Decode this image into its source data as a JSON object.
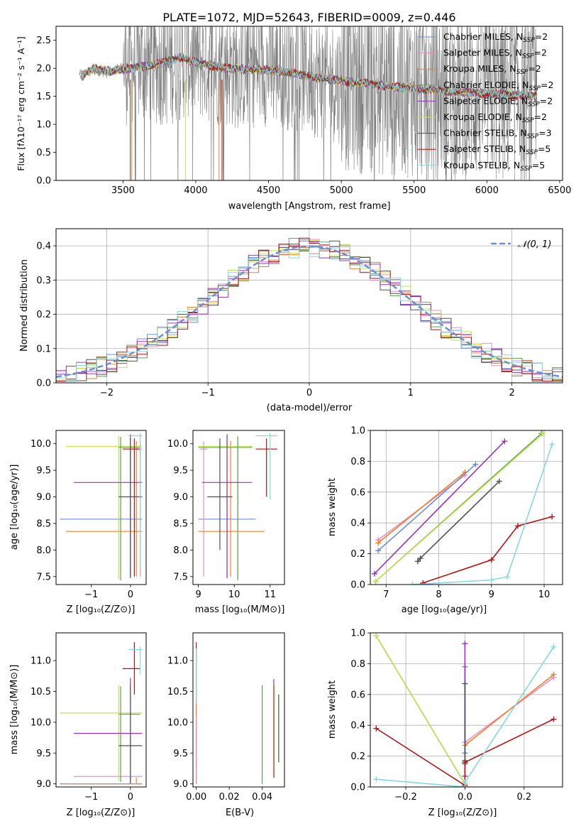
{
  "figure": {
    "title": "PLATE=1072, MJD=52643, FIBERID=0009, z=0.446"
  },
  "legend_entries": [
    {
      "pre": "Chabrier MILES, N",
      "sub": "SSP",
      "post": "=2",
      "color": "#6a8fd8"
    },
    {
      "pre": "Salpeter MILES, N",
      "sub": "SSP",
      "post": "=2",
      "color": "#e98fc9"
    },
    {
      "pre": "Kroupa MILES, N",
      "sub": "SSP",
      "post": "=2",
      "color": "#f0802a"
    },
    {
      "pre": "Chabrier ELODIE, N",
      "sub": "SSP",
      "post": "=2",
      "color": "#5aa05a"
    },
    {
      "pre": "Salpeter ELODIE, N",
      "sub": "SSP",
      "post": "=2",
      "color": "#9b30c0"
    },
    {
      "pre": "Kroupa ELODIE, N",
      "sub": "SSP",
      "post": "=2",
      "color": "#c6e050"
    },
    {
      "pre": "Chabrier STELIB, N",
      "sub": "SSP",
      "post": "=3",
      "color": "#505050"
    },
    {
      "pre": "Salpeter STELIB, N",
      "sub": "SSP",
      "post": "=5",
      "color": "#b01515"
    },
    {
      "pre": "Kroupa STELIB, N",
      "sub": "SSP",
      "post": "=5",
      "color": "#85d8e0"
    }
  ],
  "chart_data": [
    {
      "id": "spectrum",
      "type": "line",
      "title": "PLATE=1072, MJD=52643, FIBERID=0009, z=0.446",
      "xlabel": "wavelength [Angstrom, rest frame]",
      "ylabel": "Flux [fλ10⁻¹⁷ erg cm⁻² s⁻¹ A⁻¹]",
      "xlim": [
        3040,
        6520
      ],
      "ylim": [
        0,
        2.75
      ],
      "xticks": [
        3500,
        4000,
        4500,
        5000,
        5500,
        6000,
        6500
      ],
      "yticks": [
        0.0,
        0.5,
        1.0,
        1.5,
        2.0,
        2.5
      ],
      "data_gray": [
        [
          3200,
          1.9
        ],
        [
          3300,
          1.95
        ],
        [
          3400,
          1.9
        ],
        [
          3500,
          2.05
        ],
        [
          3600,
          2.1
        ],
        [
          3800,
          2.05
        ],
        [
          3950,
          2.2
        ],
        [
          4100,
          2.1
        ],
        [
          4300,
          1.98
        ],
        [
          4500,
          2.05
        ],
        [
          4700,
          1.95
        ],
        [
          4900,
          1.78
        ],
        [
          5100,
          1.72
        ],
        [
          5300,
          1.65
        ],
        [
          5500,
          1.63
        ],
        [
          5700,
          1.6
        ],
        [
          5900,
          1.55
        ],
        [
          6100,
          1.52
        ],
        [
          6300,
          1.5
        ]
      ],
      "models_mean": [
        [
          3210,
          1.85
        ],
        [
          3300,
          2.0
        ],
        [
          3400,
          1.95
        ],
        [
          3550,
          2.0
        ],
        [
          3700,
          2.05
        ],
        [
          3900,
          2.2
        ],
        [
          4000,
          2.1
        ],
        [
          4200,
          2.0
        ],
        [
          4400,
          1.98
        ],
        [
          4600,
          1.95
        ],
        [
          4800,
          1.85
        ],
        [
          5000,
          1.78
        ],
        [
          5200,
          1.72
        ],
        [
          5400,
          1.66
        ],
        [
          5600,
          1.62
        ],
        [
          5800,
          1.58
        ],
        [
          6000,
          1.55
        ],
        [
          6200,
          1.52
        ],
        [
          6340,
          1.5
        ]
      ],
      "grid": false,
      "legend": "right"
    },
    {
      "id": "residuals",
      "type": "line",
      "xlabel": "(data-model)/error",
      "ylabel": "Normed distribution",
      "xlim": [
        -2.5,
        2.5
      ],
      "ylim": [
        0,
        0.45
      ],
      "xticks": [
        -2,
        -1,
        0,
        1,
        2
      ],
      "yticks": [
        0.0,
        0.1,
        0.2,
        0.3,
        0.4
      ],
      "series": [
        {
          "name": "𝒩(0, 1)",
          "curve": "gaussian",
          "mean": 0,
          "sigma": 1
        }
      ],
      "hist_bin_width": 0.1,
      "grid": true,
      "legend": "top-right"
    },
    {
      "id": "age_vs_Z",
      "type": "scatter",
      "xlabel": "Z [log₁₀(Z/Z⊙)]",
      "ylabel": "age [log₁₀(age/yr)]",
      "xlim": [
        -1.9,
        0.4
      ],
      "ylim": [
        7.35,
        10.25
      ],
      "xticks": [
        -1,
        0
      ],
      "yticks": [
        7.5,
        8.0,
        8.5,
        9.0,
        9.5,
        10.0
      ],
      "errorbars": [
        {
          "x": 0.0,
          "y": 8.58,
          "xerr": [
            1.8,
            0.3
          ],
          "yerr": [
            1.1,
            1.6
          ],
          "c": "#6a8fd8"
        },
        {
          "x": 0.15,
          "y": 8.35,
          "xerr": [
            1.8,
            0.15
          ],
          "yerr": [
            0.85,
            1.7
          ],
          "c": "#f0802a"
        },
        {
          "x": 0.25,
          "y": 9.9,
          "xerr": [
            0.1,
            0.05
          ],
          "yerr": [
            2.4,
            0.15
          ],
          "c": "#e98fc9"
        },
        {
          "x": -0.3,
          "y": 9.95,
          "xerr": [
            1.35,
            0.6
          ],
          "yerr": [
            2.5,
            0.2
          ],
          "c": "#c6e050"
        },
        {
          "x": -0.25,
          "y": 9.93,
          "xerr": [
            0.05,
            0.5
          ],
          "yerr": [
            2.5,
            0.2
          ],
          "c": "#5aa05a"
        },
        {
          "x": 0.0,
          "y": 9.27,
          "xerr": [
            1.45,
            0.3
          ],
          "yerr": [
            1.8,
            0.9
          ],
          "c": "#9b30c0"
        },
        {
          "x": 0.0,
          "y": 9.0,
          "xerr": [
            0.3,
            0.3
          ],
          "yerr": [
            1.5,
            1.1
          ],
          "c": "#505050"
        },
        {
          "x": 0.1,
          "y": 9.9,
          "xerr": [
            0.3,
            0.15
          ],
          "yerr": [
            2.4,
            0.2
          ],
          "c": "#b01515"
        },
        {
          "x": 0.25,
          "y": 10.15,
          "xerr": [
            0.3,
            0.05
          ],
          "yerr": [
            2.5,
            0.05
          ],
          "c": "#85d8e0"
        }
      ],
      "grid": false
    },
    {
      "id": "age_vs_mass",
      "type": "scatter",
      "xlabel": "mass [log₁₀(M/M⊙)]",
      "ylabel": "",
      "xlim": [
        8.85,
        11.4
      ],
      "ylim": [
        7.35,
        10.25
      ],
      "xticks": [
        9,
        10,
        11
      ],
      "yticks": [
        7.5,
        8.0,
        8.5,
        9.0,
        9.5,
        10.0
      ],
      "errorbars": [
        {
          "x": 9.8,
          "y": 8.58,
          "xerr": [
            0.8,
            0.8
          ],
          "yerr": [
            1.1,
            1.6
          ],
          "c": "#6a8fd8"
        },
        {
          "x": 9.9,
          "y": 8.35,
          "xerr": [
            0.9,
            0.95
          ],
          "yerr": [
            0.85,
            1.7
          ],
          "c": "#f0802a"
        },
        {
          "x": 9.15,
          "y": 9.9,
          "xerr": [
            0.1,
            0.1
          ],
          "yerr": [
            2.4,
            0.15
          ],
          "c": "#e98fc9"
        },
        {
          "x": 10.1,
          "y": 9.95,
          "xerr": [
            1.1,
            0.4
          ],
          "yerr": [
            2.5,
            0.2
          ],
          "c": "#c6e050"
        },
        {
          "x": 10.1,
          "y": 9.93,
          "xerr": [
            1.1,
            0.4
          ],
          "yerr": [
            2.5,
            0.2
          ],
          "c": "#5aa05a"
        },
        {
          "x": 9.8,
          "y": 9.27,
          "xerr": [
            0.7,
            0.7
          ],
          "yerr": [
            1.8,
            0.9
          ],
          "c": "#9b30c0"
        },
        {
          "x": 9.6,
          "y": 9.0,
          "xerr": [
            0.35,
            0.35
          ],
          "yerr": [
            1.0,
            1.1
          ],
          "c": "#505050"
        },
        {
          "x": 10.9,
          "y": 9.9,
          "xerr": [
            0.3,
            0.3
          ],
          "yerr": [
            0.9,
            0.2
          ],
          "c": "#b01515"
        },
        {
          "x": 11.0,
          "y": 10.15,
          "xerr": [
            0.4,
            0.2
          ],
          "yerr": [
            1.2,
            0.05
          ],
          "c": "#85d8e0"
        }
      ],
      "grid": false
    },
    {
      "id": "weight_vs_age",
      "type": "line",
      "xlabel": "age [log₁₀(age/yr)]",
      "ylabel": "mass weight",
      "xlim": [
        6.7,
        10.35
      ],
      "ylim": [
        0,
        1
      ],
      "xticks": [
        7,
        8,
        9,
        10
      ],
      "yticks": [
        0.0,
        0.2,
        0.4,
        0.6,
        0.8,
        1.0
      ],
      "series": [
        {
          "c": "#e98fc9",
          "pts": [
            [
              6.85,
              0.29
            ],
            [
              8.5,
              0.71
            ]
          ]
        },
        {
          "c": "#f0802a",
          "pts": [
            [
              6.85,
              0.27
            ],
            [
              8.5,
              0.73
            ]
          ]
        },
        {
          "c": "#6a8fd8",
          "pts": [
            [
              6.85,
              0.22
            ],
            [
              8.7,
              0.78
            ]
          ]
        },
        {
          "c": "#9b30c0",
          "pts": [
            [
              6.78,
              0.07
            ],
            [
              9.25,
              0.93
            ]
          ]
        },
        {
          "c": "#5aa05a",
          "pts": [
            [
              6.8,
              0.02
            ],
            [
              9.95,
              0.98
            ]
          ]
        },
        {
          "c": "#c6e050",
          "pts": [
            [
              6.8,
              0.02
            ],
            [
              9.98,
              0.98
            ]
          ]
        },
        {
          "c": "#505050",
          "pts": [
            [
              7.6,
              0.15
            ],
            [
              7.65,
              0.17
            ],
            [
              9.15,
              0.67
            ]
          ]
        },
        {
          "c": "#b01515",
          "pts": [
            [
              7.7,
              0.01
            ],
            [
              9.0,
              0.16
            ],
            [
              9.5,
              0.38
            ],
            [
              10.15,
              0.44
            ]
          ]
        },
        {
          "c": "#85d8e0",
          "pts": [
            [
              7.5,
              0.0
            ],
            [
              9.0,
              0.03
            ],
            [
              9.3,
              0.05
            ],
            [
              10.15,
              0.91
            ]
          ]
        }
      ],
      "grid": true
    },
    {
      "id": "mass_vs_Z",
      "type": "scatter",
      "xlabel": "Z [log₁₀(Z/Z⊙)]",
      "ylabel": "mass [log₁₀(M/M⊙)]",
      "xlim": [
        -1.9,
        0.4
      ],
      "ylim": [
        8.95,
        11.45
      ],
      "xticks": [
        -1,
        0
      ],
      "yticks": [
        9.0,
        9.5,
        10.0,
        10.5,
        11.0
      ],
      "errorbars": [
        {
          "x": 0.0,
          "y": 9.0,
          "xerr": [
            1.8,
            0.3
          ],
          "yerr": [
            0,
            0.1
          ],
          "c": "#6a8fd8"
        },
        {
          "x": 0.15,
          "y": 9.0,
          "xerr": [
            1.8,
            0.15
          ],
          "yerr": [
            0,
            0.1
          ],
          "c": "#f0802a"
        },
        {
          "x": 0.0,
          "y": 9.12,
          "xerr": [
            1.45,
            0.3
          ],
          "yerr": [
            0.12,
            0.1
          ],
          "c": "#e98fc9"
        },
        {
          "x": -0.3,
          "y": 10.15,
          "xerr": [
            1.5,
            0.6
          ],
          "yerr": [
            1.1,
            0.45
          ],
          "c": "#c6e050"
        },
        {
          "x": -0.25,
          "y": 10.13,
          "xerr": [
            0.05,
            0.5
          ],
          "yerr": [
            1.1,
            0.45
          ],
          "c": "#5aa05a"
        },
        {
          "x": 0.0,
          "y": 9.82,
          "xerr": [
            1.45,
            0.3
          ],
          "yerr": [
            0.82,
            0.9
          ],
          "c": "#9b30c0"
        },
        {
          "x": 0.0,
          "y": 9.62,
          "xerr": [
            0.3,
            0.3
          ],
          "yerr": [
            0.6,
            1.0
          ],
          "c": "#505050"
        },
        {
          "x": 0.1,
          "y": 10.87,
          "xerr": [
            0.3,
            0.15
          ],
          "yerr": [
            0.42,
            0.43
          ],
          "c": "#b01515"
        },
        {
          "x": 0.25,
          "y": 11.18,
          "xerr": [
            0.3,
            0.05
          ],
          "yerr": [
            0.4,
            0.05
          ],
          "c": "#85d8e0"
        }
      ],
      "grid": false
    },
    {
      "id": "mass_vs_ebv",
      "type": "scatter",
      "xlabel": "E(B-V)",
      "ylabel": "",
      "xlim": [
        -0.002,
        0.0535
      ],
      "ylim": [
        8.95,
        11.45
      ],
      "xticks": [
        0.0,
        0.02,
        0.04
      ],
      "yticks": [
        9.0,
        9.5,
        10.0,
        10.5,
        11.0
      ],
      "xticklabels": [
        "0.00",
        "0.02",
        "0.04"
      ],
      "vlines": [
        {
          "x": 0.0,
          "y0": 9.0,
          "y1": 11.3,
          "c": "#b01515"
        },
        {
          "x": 0.0,
          "y0": 9.0,
          "y1": 11.2,
          "c": "#85d8e0"
        },
        {
          "x": 0.0,
          "y0": 9.0,
          "y1": 10.3,
          "c": "#f0802a"
        },
        {
          "x": 0.0,
          "y0": 9.0,
          "y1": 10.1,
          "c": "#e98fc9"
        },
        {
          "x": 0.04,
          "y0": 9.0,
          "y1": 10.6,
          "c": "#5aa05a"
        },
        {
          "x": 0.047,
          "y0": 9.1,
          "y1": 10.7,
          "c": "#9b30c0"
        },
        {
          "x": 0.0475,
          "y0": 9.1,
          "y1": 10.6,
          "c": "#c6e050"
        },
        {
          "x": 0.05,
          "y0": 9.35,
          "y1": 10.45,
          "c": "#505050"
        }
      ],
      "grid": false
    },
    {
      "id": "weight_vs_Z",
      "type": "line",
      "xlabel": "Z [log₁₀(Z/Z⊙)]",
      "ylabel": "mass weight",
      "xlim": [
        -0.32,
        0.33
      ],
      "ylim": [
        0,
        1
      ],
      "xticks": [
        -0.2,
        0.0,
        0.2
      ],
      "yticks": [
        0.0,
        0.2,
        0.4,
        0.6,
        0.8,
        1.0
      ],
      "series": [
        {
          "c": "#e98fc9",
          "pts": [
            [
              0.0,
              0.29
            ],
            [
              0.3,
              0.71
            ]
          ]
        },
        {
          "c": "#f0802a",
          "pts": [
            [
              0.0,
              0.27
            ],
            [
              0.3,
              0.73
            ]
          ]
        },
        {
          "c": "#6a8fd8",
          "pts": [
            [
              0.0,
              0.22
            ],
            [
              0.0,
              0.78
            ]
          ]
        },
        {
          "c": "#9b30c0",
          "pts": [
            [
              0.0,
              0.07
            ],
            [
              0.0,
              0.93
            ]
          ]
        },
        {
          "c": "#5aa05a",
          "pts": [
            [
              -0.3,
              0.98
            ],
            [
              0.0,
              0.02
            ]
          ]
        },
        {
          "c": "#c6e050",
          "pts": [
            [
              -0.3,
              0.98
            ],
            [
              0.0,
              0.02
            ]
          ]
        },
        {
          "c": "#505050",
          "pts": [
            [
              0.0,
              0.15
            ],
            [
              0.0,
              0.17
            ],
            [
              0.0,
              0.67
            ]
          ]
        },
        {
          "c": "#b01515",
          "pts": [
            [
              -0.3,
              0.38
            ],
            [
              0.0,
              0.01
            ],
            [
              0.0,
              0.16
            ],
            [
              0.3,
              0.44
            ]
          ]
        },
        {
          "c": "#85d8e0",
          "pts": [
            [
              -0.3,
              0.05
            ],
            [
              0.0,
              0.0
            ],
            [
              0.0,
              0.03
            ],
            [
              0.3,
              0.91
            ]
          ]
        }
      ],
      "grid": true
    }
  ]
}
